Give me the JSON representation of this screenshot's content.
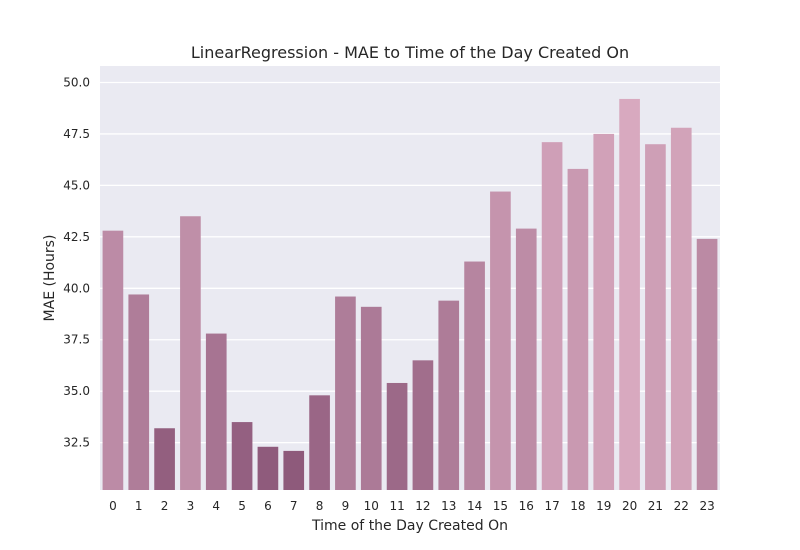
{
  "chart_data": {
    "type": "bar",
    "title": "LinearRegression - MAE to Time of the Day Created On",
    "xlabel": "Time of the Day Created On",
    "ylabel": "MAE (Hours)",
    "ylim": [
      30.2,
      50.8
    ],
    "yticks": [
      "32.5",
      "35.0",
      "37.5",
      "40.0",
      "42.5",
      "45.0",
      "47.5",
      "50.0"
    ],
    "ytick_values": [
      32.5,
      35.0,
      37.5,
      40.0,
      42.5,
      45.0,
      47.5,
      50.0
    ],
    "grid": true,
    "categories": [
      "0",
      "1",
      "2",
      "3",
      "4",
      "5",
      "6",
      "7",
      "8",
      "9",
      "10",
      "11",
      "12",
      "13",
      "14",
      "15",
      "16",
      "17",
      "18",
      "19",
      "20",
      "21",
      "22",
      "23"
    ],
    "values": [
      42.8,
      39.7,
      33.2,
      43.5,
      37.8,
      33.5,
      32.3,
      32.1,
      34.8,
      39.6,
      39.1,
      35.4,
      36.5,
      39.4,
      41.3,
      44.7,
      42.9,
      47.1,
      45.8,
      47.5,
      49.2,
      47.0,
      47.8,
      42.4
    ],
    "colors": {
      "background": "#eaeaf2",
      "grid": "#ffffff",
      "bar_low": "#8e5a7b",
      "bar_high": "#d8a9bf"
    }
  }
}
